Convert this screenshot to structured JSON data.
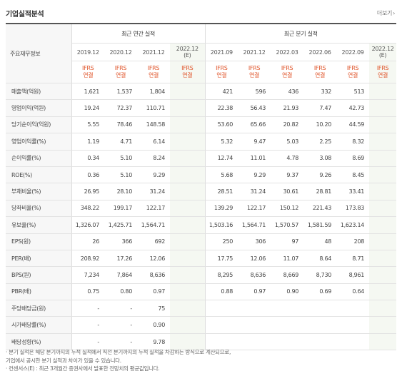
{
  "title": "기업실적분석",
  "more_label": "더보기",
  "more_icon": "chevron-right-icon",
  "row_header": "주요재무정보",
  "group_annual": "최근 연간 실적",
  "group_quarter": "최근 분기 실적",
  "annual_periods": [
    "2019.12",
    "2020.12",
    "2021.12",
    "2022.12\n(E)"
  ],
  "quarter_periods": [
    "2021.09",
    "2021.12",
    "2022.03",
    "2022.06",
    "2022.09",
    "2022.12\n(E)"
  ],
  "ifrs_label": "IFRS\n연결",
  "rows": [
    {
      "label": "매출액(억원)",
      "annual": [
        "1,621",
        "1,537",
        "1,804",
        ""
      ],
      "quarter": [
        "421",
        "596",
        "436",
        "332",
        "513",
        ""
      ]
    },
    {
      "label": "영업이익(억원)",
      "annual": [
        "19.24",
        "72.37",
        "110.71",
        ""
      ],
      "quarter": [
        "22.38",
        "56.43",
        "21.93",
        "7.47",
        "42.73",
        ""
      ]
    },
    {
      "label": "당기순이익(억원)",
      "annual": [
        "5.55",
        "78.46",
        "148.58",
        ""
      ],
      "quarter": [
        "53.60",
        "65.66",
        "20.82",
        "10.20",
        "44.59",
        ""
      ]
    },
    {
      "label": "영업이익률(%)",
      "annual": [
        "1.19",
        "4.71",
        "6.14",
        ""
      ],
      "quarter": [
        "5.32",
        "9.47",
        "5.03",
        "2.25",
        "8.32",
        ""
      ]
    },
    {
      "label": "순이익률(%)",
      "annual": [
        "0.34",
        "5.10",
        "8.24",
        ""
      ],
      "quarter": [
        "12.74",
        "11.01",
        "4.78",
        "3.08",
        "8.69",
        ""
      ]
    },
    {
      "label": "ROE(%)",
      "annual": [
        "0.36",
        "5.10",
        "9.29",
        ""
      ],
      "quarter": [
        "5.68",
        "9.29",
        "9.37",
        "9.26",
        "8.45",
        ""
      ]
    },
    {
      "label": "부채비율(%)",
      "annual": [
        "26.95",
        "28.10",
        "31.24",
        ""
      ],
      "quarter": [
        "28.51",
        "31.24",
        "30.61",
        "28.81",
        "33.41",
        ""
      ]
    },
    {
      "label": "당좌비율(%)",
      "annual": [
        "348.22",
        "199.17",
        "122.17",
        ""
      ],
      "quarter": [
        "139.29",
        "122.17",
        "150.12",
        "221.43",
        "173.83",
        ""
      ]
    },
    {
      "label": "유보율(%)",
      "annual": [
        "1,326.07",
        "1,425.71",
        "1,564.71",
        ""
      ],
      "quarter": [
        "1,503.16",
        "1,564.71",
        "1,570.57",
        "1,581.59",
        "1,623.14",
        ""
      ]
    },
    {
      "label": "EPS(원)",
      "annual": [
        "26",
        "366",
        "692",
        ""
      ],
      "quarter": [
        "250",
        "306",
        "97",
        "48",
        "208",
        ""
      ]
    },
    {
      "label": "PER(배)",
      "annual": [
        "208.92",
        "17.26",
        "12.06",
        ""
      ],
      "quarter": [
        "17.75",
        "12.06",
        "11.07",
        "8.64",
        "8.71",
        ""
      ]
    },
    {
      "label": "BPS(원)",
      "annual": [
        "7,234",
        "7,864",
        "8,636",
        ""
      ],
      "quarter": [
        "8,295",
        "8,636",
        "8,669",
        "8,730",
        "8,961",
        ""
      ]
    },
    {
      "label": "PBR(배)",
      "annual": [
        "0.75",
        "0.80",
        "0.97",
        ""
      ],
      "quarter": [
        "0.88",
        "0.97",
        "0.90",
        "0.69",
        "0.64",
        ""
      ]
    },
    {
      "label": "주당배당금(원)",
      "annual": [
        "-",
        "-",
        "75",
        ""
      ],
      "quarter": [
        "",
        "",
        "",
        "",
        "",
        ""
      ]
    },
    {
      "label": "시가배당률(%)",
      "annual": [
        "-",
        "-",
        "0.90",
        ""
      ],
      "quarter": [
        "",
        "",
        "",
        "",
        "",
        ""
      ]
    },
    {
      "label": "배당성향(%)",
      "annual": [
        "-",
        "-",
        "9.78",
        ""
      ],
      "quarter": [
        "",
        "",
        "",
        "",
        "",
        ""
      ]
    }
  ],
  "footnotes": [
    "· 분기 실적은 해당 분기까지의 누적 실적에서 직전 분기까지의 누적 실적을 차감하는 방식으로 계산되므로,",
    "  기업에서 공시한 분기 실적과 차이가 있을 수 있습니다.",
    "· 컨센서스(E) : 최근 3개월간 증권사에서 발표한 전망치의 평균값입니다."
  ]
}
